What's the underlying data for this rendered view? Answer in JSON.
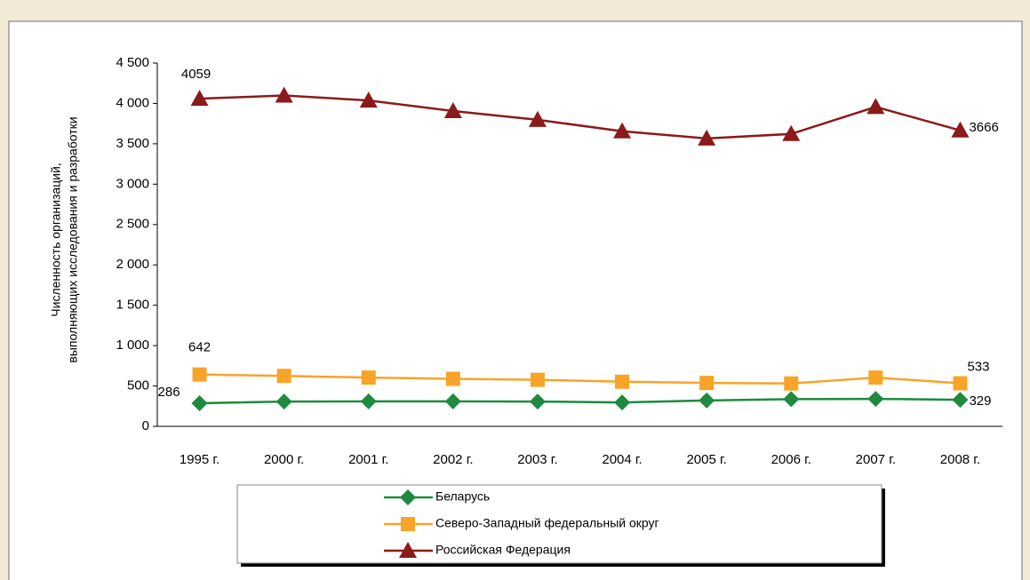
{
  "chart_data": {
    "type": "line",
    "ylabel": [
      "Численность организаций,",
      "выполняющих исследования и разработки"
    ],
    "categories": [
      "1995 г.",
      "2000 г.",
      "2001 г.",
      "2002 г.",
      "2003 г.",
      "2004 г.",
      "2005 г.",
      "2006 г.",
      "2007 г.",
      "2008 г."
    ],
    "series": [
      {
        "name": "Беларусь",
        "color": "#1e8a3e",
        "marker": "diamond",
        "values": [
          286,
          307,
          309,
          309,
          307,
          296,
          321,
          337,
          340,
          329
        ],
        "data_labels": [
          0,
          9
        ]
      },
      {
        "name": "Северо-Западный федеральный округ",
        "color": "#f7a428",
        "marker": "square",
        "values": [
          642,
          625,
          604,
          588,
          576,
          553,
          538,
          531,
          604,
          533
        ],
        "data_labels": [
          0,
          9
        ]
      },
      {
        "name": "Российская Федерация",
        "color": "#8b1a1a",
        "marker": "triangle",
        "values": [
          4059,
          4099,
          4037,
          3906,
          3797,
          3656,
          3566,
          3622,
          3957,
          3666
        ],
        "data_labels": [
          0,
          9
        ]
      }
    ],
    "ylim": [
      0,
      4500
    ],
    "yticks": [
      0,
      500,
      {
        "value": 1000,
        "label": "1 000"
      },
      {
        "value": 1500,
        "label": "1 500"
      },
      {
        "value": 2000,
        "label": "2 000"
      },
      {
        "value": 2500,
        "label": "2 500"
      },
      {
        "value": 3000,
        "label": "3 000"
      },
      {
        "value": 3500,
        "label": "3 500"
      },
      {
        "value": 4000,
        "label": "4 000"
      },
      {
        "value": 4500,
        "label": "4 500"
      }
    ],
    "legend": "bottom"
  }
}
